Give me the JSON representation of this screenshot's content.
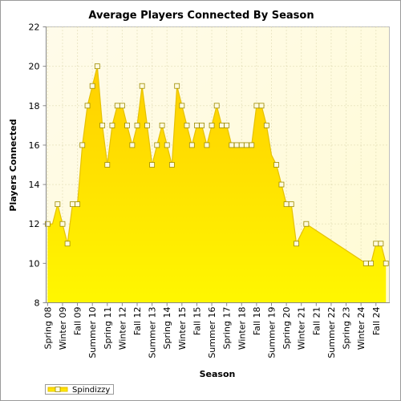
{
  "chart_data": {
    "type": "area",
    "title": "Average Players Connected By Season",
    "xlabel": "Season",
    "ylabel": "Players Connected",
    "ylim": [
      8,
      22
    ],
    "yticks": [
      8,
      10,
      12,
      14,
      16,
      18,
      20,
      22
    ],
    "grid": true,
    "legend_position": "bottom-left",
    "categories": [
      "Spring 08",
      "Winter 09",
      "Fall 09",
      "Summer 10",
      "Spring 11",
      "Winter 12",
      "Fall 12",
      "Summer 13",
      "Spring 14",
      "Winter 15",
      "Fall 15",
      "Summer 16",
      "Spring 17",
      "Winter 18",
      "Fall 18",
      "Summer 19",
      "Spring 20",
      "Winter 21",
      "Fall 21",
      "Summer 22",
      "Spring 23",
      "Winter 24",
      "Fall 24"
    ],
    "series": [
      {
        "name": "Spindizzy",
        "color": "#ffe100",
        "points": [
          {
            "x": 0.0,
            "y": 12
          },
          {
            "x": 0.33,
            "y": 12
          },
          {
            "x": 0.67,
            "y": 13
          },
          {
            "x": 1.0,
            "y": 12
          },
          {
            "x": 1.33,
            "y": 11
          },
          {
            "x": 1.67,
            "y": 13
          },
          {
            "x": 2.0,
            "y": 13
          },
          {
            "x": 2.33,
            "y": 16
          },
          {
            "x": 2.67,
            "y": 18
          },
          {
            "x": 3.0,
            "y": 19
          },
          {
            "x": 3.33,
            "y": 20
          },
          {
            "x": 3.67,
            "y": 17
          },
          {
            "x": 4.0,
            "y": 15
          },
          {
            "x": 4.33,
            "y": 17
          },
          {
            "x": 4.67,
            "y": 18
          },
          {
            "x": 5.0,
            "y": 18
          },
          {
            "x": 5.33,
            "y": 17
          },
          {
            "x": 5.67,
            "y": 16
          },
          {
            "x": 6.0,
            "y": 17
          },
          {
            "x": 6.33,
            "y": 19
          },
          {
            "x": 6.67,
            "y": 17
          },
          {
            "x": 7.0,
            "y": 15
          },
          {
            "x": 7.33,
            "y": 16
          },
          {
            "x": 7.67,
            "y": 17
          },
          {
            "x": 8.0,
            "y": 16
          },
          {
            "x": 8.33,
            "y": 15
          },
          {
            "x": 8.67,
            "y": 19
          },
          {
            "x": 9.0,
            "y": 18
          },
          {
            "x": 9.33,
            "y": 17
          },
          {
            "x": 9.67,
            "y": 16
          },
          {
            "x": 10.0,
            "y": 17
          },
          {
            "x": 10.33,
            "y": 17
          },
          {
            "x": 10.67,
            "y": 16
          },
          {
            "x": 11.0,
            "y": 17
          },
          {
            "x": 11.33,
            "y": 18
          },
          {
            "x": 11.67,
            "y": 17
          },
          {
            "x": 12.0,
            "y": 17
          },
          {
            "x": 12.33,
            "y": 16
          },
          {
            "x": 12.67,
            "y": 16
          },
          {
            "x": 13.0,
            "y": 16
          },
          {
            "x": 13.33,
            "y": 16
          },
          {
            "x": 13.67,
            "y": 16
          },
          {
            "x": 14.0,
            "y": 18
          },
          {
            "x": 14.33,
            "y": 18
          },
          {
            "x": 14.67,
            "y": 17
          },
          {
            "x": 15.0,
            "y": 15.5
          },
          {
            "x": 15.33,
            "y": 15
          },
          {
            "x": 15.67,
            "y": 14
          },
          {
            "x": 16.0,
            "y": 13
          },
          {
            "x": 16.33,
            "y": 13
          },
          {
            "x": 16.67,
            "y": 11
          },
          {
            "x": 17.33,
            "y": 12
          },
          {
            "x": 21.33,
            "y": 10
          },
          {
            "x": 21.67,
            "y": 10
          },
          {
            "x": 22.0,
            "y": 11
          },
          {
            "x": 22.33,
            "y": 11
          },
          {
            "x": 22.67,
            "y": 10
          }
        ],
        "marker_indices": [
          0,
          2,
          3,
          4,
          5,
          6,
          7,
          8,
          9,
          10,
          11,
          12,
          13,
          14,
          15,
          16,
          17,
          18,
          19,
          20,
          21,
          22,
          23,
          24,
          25,
          26,
          27,
          28,
          29,
          30,
          31,
          32,
          33,
          34,
          35,
          36,
          37,
          38,
          39,
          40,
          41,
          42,
          43,
          44,
          46,
          47,
          48,
          49,
          50,
          51,
          52,
          53,
          54,
          55,
          56
        ]
      }
    ]
  },
  "style": {
    "plot_background": "#fffbe0",
    "fill_top": "#ffd400",
    "fill_bottom": "#fff700",
    "line_color": "#e6c200",
    "marker_fill": "#fffbe0",
    "marker_stroke": "#9c8a00",
    "grid_color": "#d8d3a8"
  }
}
